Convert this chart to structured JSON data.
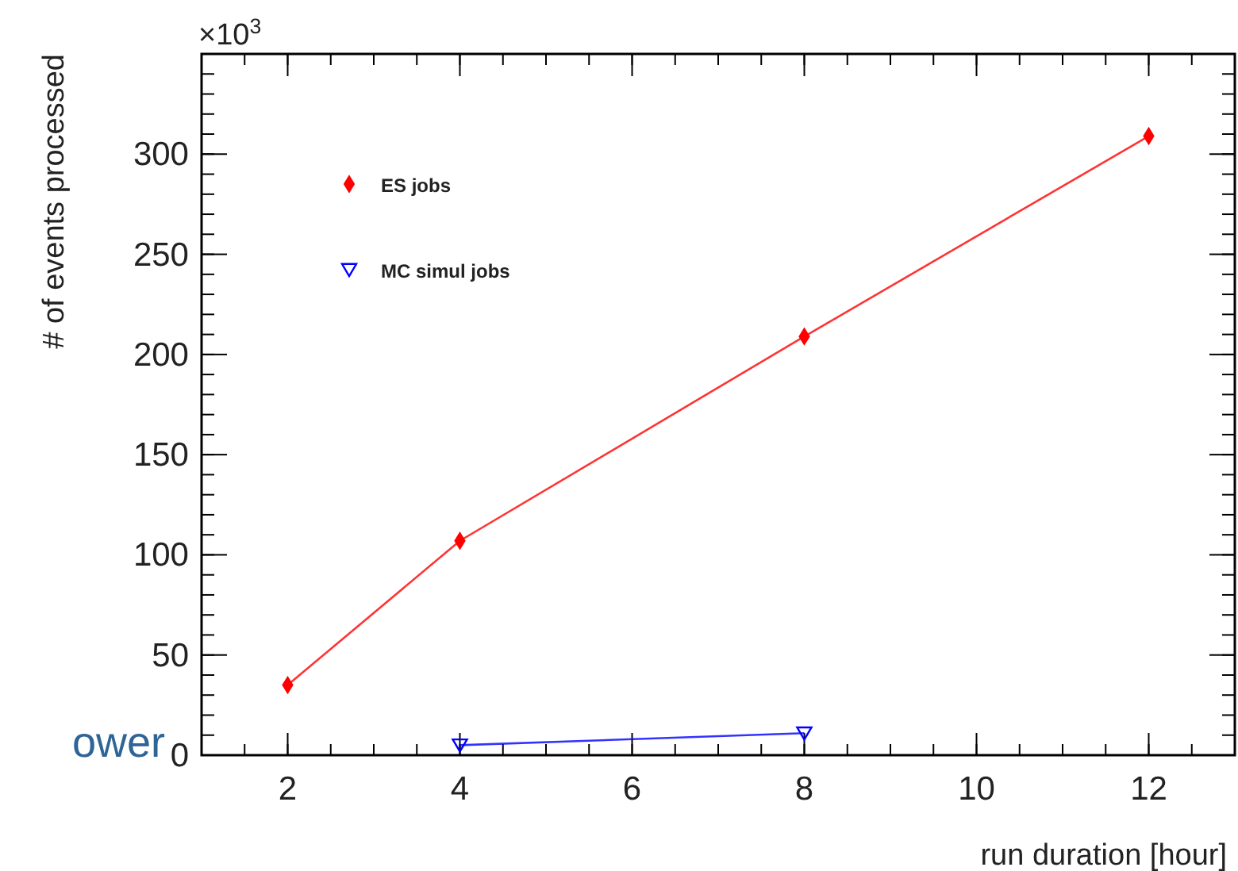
{
  "chart_data": {
    "type": "line",
    "xlabel": "run duration [hour]",
    "ylabel": "# of events processed",
    "annotations": [
      "×10$^{3}$",
      "ower"
    ],
    "series": [
      {
        "name": "ES jobs",
        "color": "#ff0000",
        "marker": "diamond",
        "x": [
          2,
          4,
          8,
          12
        ],
        "values": [
          35,
          107,
          209,
          309
        ]
      },
      {
        "name": "MC simul jobs",
        "color": "#0000ff",
        "marker": "triangle",
        "x": [
          4,
          8
        ],
        "values": [
          5,
          11
        ]
      }
    ],
    "xlim": [
      1,
      13
    ],
    "ylim": [
      0,
      350
    ],
    "xticks": [
      2,
      4,
      6,
      8,
      10,
      12
    ],
    "yticks": [
      0,
      50,
      100,
      150,
      200,
      250,
      300
    ],
    "grid": false,
    "legend": "top left",
    "line_style": "solid"
  }
}
